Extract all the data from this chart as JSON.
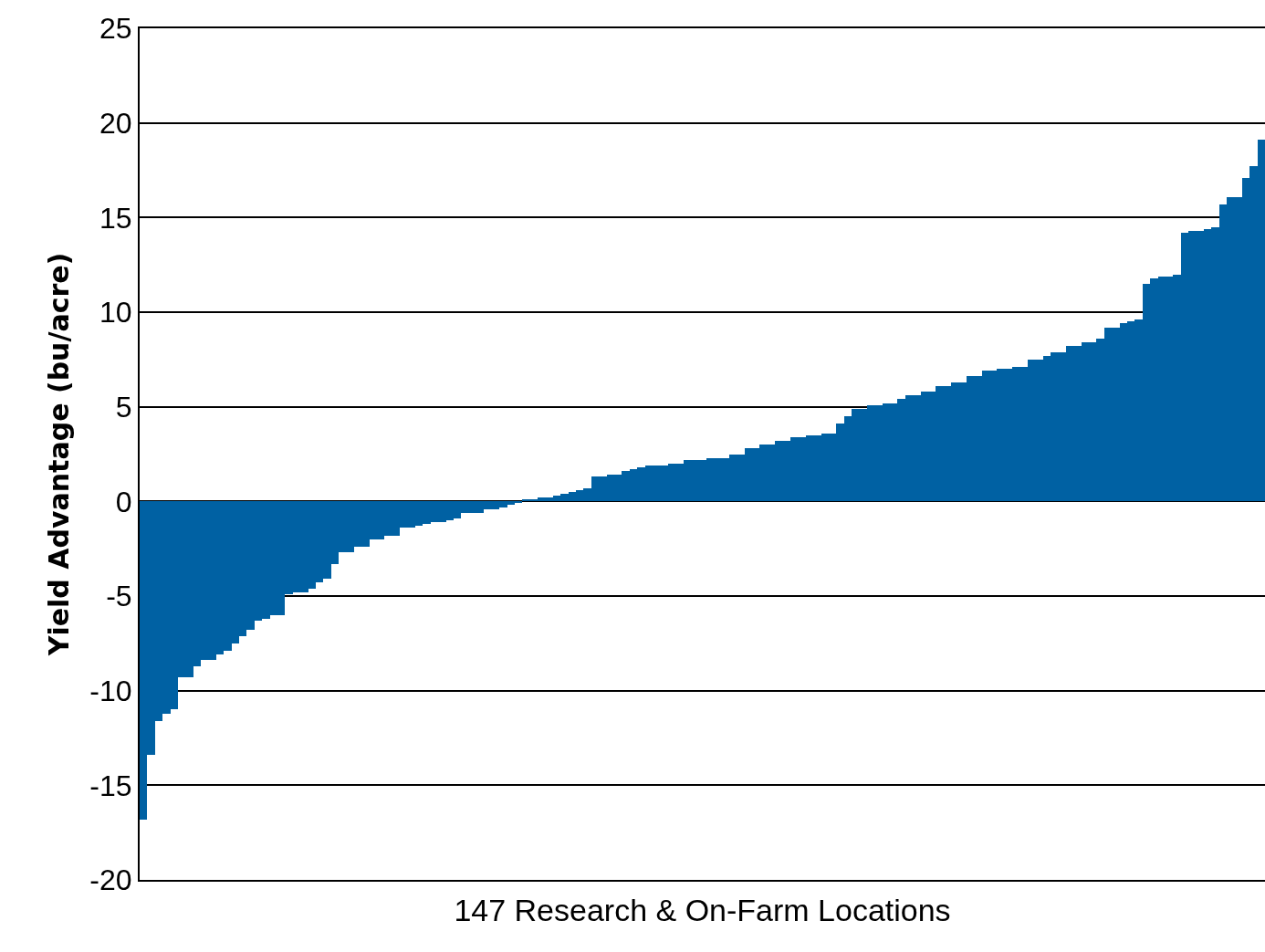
{
  "chart_data": {
    "type": "bar",
    "xlabel": "147 Research & On-Farm Locations",
    "ylabel": "Yield Advantage (bu/acre)",
    "categories": [
      null,
      null,
      null,
      null,
      null,
      null,
      null,
      null,
      null,
      null,
      null,
      null,
      null,
      null,
      null,
      null,
      null,
      null,
      null,
      null,
      null,
      null,
      null,
      null,
      null,
      null,
      null,
      null,
      null,
      null,
      null,
      null,
      null,
      null,
      null,
      null,
      null,
      null,
      null,
      null,
      null,
      null,
      null,
      null,
      null,
      null,
      null,
      null,
      null,
      null,
      null,
      null,
      null,
      null,
      null,
      null,
      null,
      null,
      null,
      null,
      null,
      null,
      null,
      null,
      null,
      null,
      null,
      null,
      null,
      null,
      null,
      null,
      null,
      null,
      null,
      null,
      null,
      null,
      null,
      null,
      null,
      null,
      null,
      null,
      null,
      null,
      null,
      null,
      null,
      null,
      null,
      null,
      null,
      null,
      null,
      null,
      null,
      null,
      null,
      null,
      null,
      null,
      null,
      null,
      null,
      null,
      null,
      null,
      null,
      null,
      null,
      null,
      null,
      null,
      null,
      null,
      null,
      null,
      null,
      null,
      null,
      null,
      null,
      null,
      null,
      null,
      null,
      null,
      null,
      null,
      null,
      null,
      null,
      null,
      null,
      null,
      null,
      null,
      null,
      null,
      null,
      null,
      null,
      null,
      null,
      null,
      null
    ],
    "values": [
      -16.8,
      -13.4,
      -11.6,
      -11.2,
      -11.0,
      -9.3,
      -9.3,
      -8.7,
      -8.4,
      -8.4,
      -8.1,
      -7.9,
      -7.5,
      -7.1,
      -6.8,
      -6.3,
      -6.2,
      -6.0,
      -6.0,
      -4.9,
      -4.8,
      -4.8,
      -4.6,
      -4.3,
      -4.1,
      -3.3,
      -2.7,
      -2.7,
      -2.4,
      -2.4,
      -2.0,
      -2.0,
      -1.8,
      -1.8,
      -1.4,
      -1.4,
      -1.3,
      -1.2,
      -1.1,
      -1.1,
      -1.0,
      -0.9,
      -0.6,
      -0.6,
      -0.6,
      -0.4,
      -0.4,
      -0.3,
      -0.2,
      -0.1,
      0.1,
      0.1,
      0.2,
      0.2,
      0.3,
      0.4,
      0.5,
      0.6,
      0.7,
      1.3,
      1.3,
      1.4,
      1.4,
      1.6,
      1.7,
      1.8,
      1.9,
      1.9,
      1.9,
      2.0,
      2.0,
      2.2,
      2.2,
      2.2,
      2.3,
      2.3,
      2.3,
      2.5,
      2.5,
      2.8,
      2.8,
      3.0,
      3.0,
      3.2,
      3.2,
      3.4,
      3.4,
      3.5,
      3.5,
      3.6,
      3.6,
      4.1,
      4.5,
      4.9,
      4.9,
      5.1,
      5.1,
      5.2,
      5.2,
      5.4,
      5.6,
      5.6,
      5.8,
      5.8,
      6.1,
      6.1,
      6.3,
      6.3,
      6.6,
      6.6,
      6.9,
      6.9,
      7.0,
      7.0,
      7.1,
      7.1,
      7.5,
      7.5,
      7.7,
      7.9,
      7.9,
      8.2,
      8.2,
      8.4,
      8.4,
      8.6,
      9.2,
      9.2,
      9.4,
      9.5,
      9.6,
      11.5,
      11.8,
      11.9,
      11.9,
      12.0,
      14.2,
      14.3,
      14.3,
      14.4,
      14.5,
      15.7,
      16.1,
      16.1,
      17.1,
      17.7,
      19.1
    ],
    "color": "#0061a3",
    "ylim": [
      -20,
      25
    ],
    "yticks": [
      -20,
      -15,
      -10,
      -5,
      0,
      5,
      10,
      15,
      20,
      25
    ],
    "grid": "y",
    "tick_labels": "y"
  }
}
